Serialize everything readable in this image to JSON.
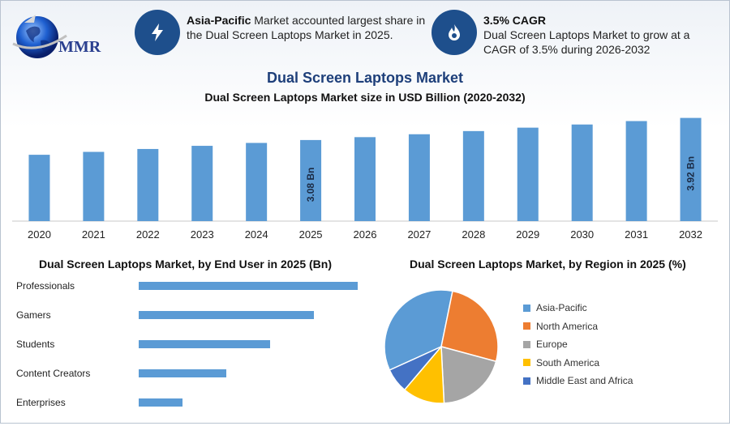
{
  "brand": {
    "logo_text": "MMR"
  },
  "info_left": {
    "bold": "Asia-Pacific",
    "text": " Market accounted largest share in the Dual Screen Laptops Market in 2025.",
    "icon": "lightning-icon"
  },
  "info_right": {
    "bold": "3.5% CAGR",
    "text": "Dual Screen Laptops Market to grow at a CAGR of 3.5% during 2026-2032",
    "icon": "flame-icon"
  },
  "main_title": "Dual Screen Laptops Market",
  "chart_data": [
    {
      "type": "bar",
      "title": "Dual Screen Laptops Market size in USD Billion (2020-2032)",
      "categories": [
        "2020",
        "2021",
        "2022",
        "2023",
        "2024",
        "2025",
        "2026",
        "2027",
        "2028",
        "2029",
        "2030",
        "2031",
        "2032"
      ],
      "values": [
        2.52,
        2.63,
        2.74,
        2.86,
        2.97,
        3.08,
        3.19,
        3.3,
        3.42,
        3.55,
        3.67,
        3.8,
        3.92
      ],
      "data_labels": {
        "5": "3.08 Bn",
        "12": "3.92 Bn"
      },
      "ylim": [
        0,
        4.0
      ],
      "color": "#5b9bd5"
    },
    {
      "type": "bar",
      "orientation": "horizontal",
      "title": "Dual Screen Laptops Market, by End User in 2025 (Bn)",
      "categories": [
        "Professionals",
        "Gamers",
        "Students",
        "Content Creators",
        "Enterprises"
      ],
      "values": [
        1.0,
        0.8,
        0.6,
        0.4,
        0.2
      ],
      "color": "#5b9bd5"
    },
    {
      "type": "pie",
      "title": "Dual Screen Laptops Market, by Region in 2025 (%)",
      "labels": [
        "Asia-Pacific",
        "North America",
        "Europe",
        "South America",
        "Middle East and Africa"
      ],
      "values": [
        35,
        26,
        20,
        12,
        7
      ],
      "colors": [
        "#5b9bd5",
        "#ed7d31",
        "#a5a5a5",
        "#ffc000",
        "#4472c4"
      ]
    }
  ]
}
